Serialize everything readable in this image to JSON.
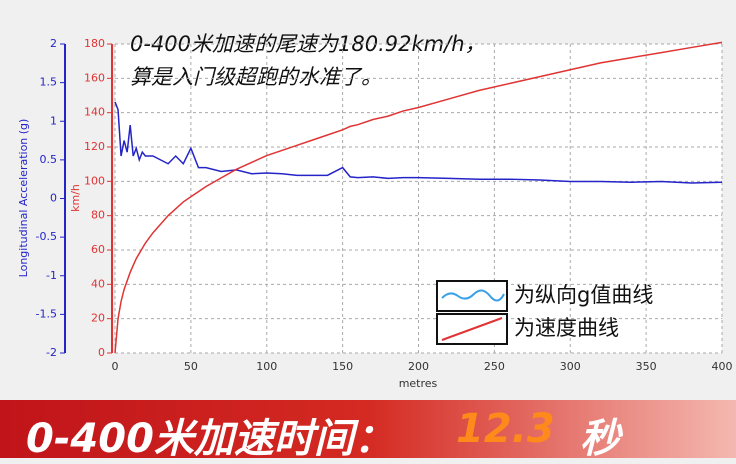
{
  "chart_data": {
    "type": "line",
    "annotation": [
      "0-400米加速的尾速为180.92km/h，",
      "算是入门级超跑的水准了。"
    ],
    "xlabel": "metres",
    "ylabel": "Longitudinal Acceleration (g)",
    "y2label": "km/h",
    "x": [
      0,
      2,
      4,
      6,
      8,
      10,
      12,
      14,
      16,
      18,
      20,
      25,
      30,
      35,
      40,
      45,
      50,
      55,
      60,
      70,
      80,
      90,
      100,
      110,
      120,
      130,
      140,
      150,
      155,
      160,
      170,
      180,
      190,
      200,
      220,
      240,
      260,
      280,
      300,
      320,
      340,
      360,
      380,
      400
    ],
    "series": [
      {
        "name": "为纵向g值曲线",
        "color": "#2424c8",
        "axis": "y",
        "values": [
          1.25,
          1.15,
          0.55,
          0.75,
          0.6,
          0.95,
          0.55,
          0.65,
          0.5,
          0.6,
          0.55,
          0.55,
          0.5,
          0.45,
          0.55,
          0.45,
          0.65,
          0.4,
          0.4,
          0.35,
          0.37,
          0.32,
          0.33,
          0.32,
          0.3,
          0.3,
          0.3,
          0.4,
          0.28,
          0.27,
          0.28,
          0.26,
          0.27,
          0.27,
          0.26,
          0.25,
          0.25,
          0.24,
          0.22,
          0.22,
          0.21,
          0.22,
          0.2,
          0.21
        ]
      },
      {
        "name": "为速度曲线",
        "color": "#e03434",
        "axis": "y2",
        "values": [
          0,
          20,
          30,
          37,
          42,
          47,
          51,
          55,
          58,
          61,
          64,
          70,
          75,
          80,
          84,
          88,
          91,
          94,
          97,
          102,
          107,
          111,
          115,
          118,
          121,
          124,
          127,
          130,
          132,
          133,
          136,
          138,
          141,
          143,
          148,
          153,
          157,
          161,
          165,
          169,
          172,
          175,
          178,
          180.92
        ]
      }
    ],
    "xlim": [
      0,
      400
    ],
    "xticks": [
      0,
      50,
      100,
      150,
      200,
      250,
      300,
      350,
      400
    ],
    "ylim": [
      -2,
      2
    ],
    "yticks": [
      -2,
      -1.5,
      -1,
      -0.5,
      0,
      0.5,
      1,
      1.5,
      2
    ],
    "y2lim": [
      0,
      180
    ],
    "y2ticks": [
      0,
      20,
      40,
      60,
      80,
      100,
      120,
      140,
      160,
      180
    ],
    "grid": true,
    "legend": "lower right"
  },
  "banner": {
    "label": "0-400米加速时间：",
    "value": "12.3",
    "unit": "秒"
  }
}
